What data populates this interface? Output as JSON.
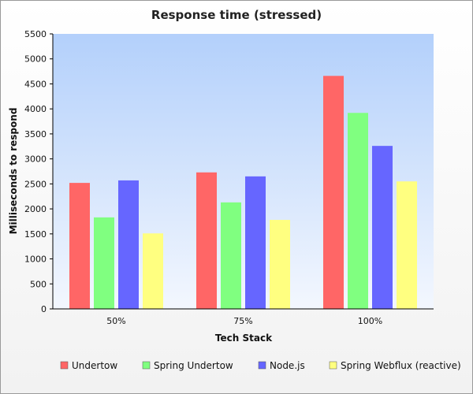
{
  "chart_data": {
    "type": "bar",
    "title": "Response time (stressed)",
    "xlabel": "Tech Stack",
    "ylabel": "Milliseconds to respond",
    "categories": [
      "50%",
      "75%",
      "100%"
    ],
    "ylim": [
      0,
      5500
    ],
    "yticks": [
      "0",
      "500",
      "1000",
      "1500",
      "2000",
      "2500",
      "3000",
      "3500",
      "4000",
      "4500",
      "5000",
      "5500"
    ],
    "grid": false,
    "legend_position": "bottom",
    "series": [
      {
        "name": "Undertow",
        "color": "#ff6666",
        "values": [
          2520,
          2730,
          4660
        ]
      },
      {
        "name": "Spring Undertow",
        "color": "#80ff80",
        "values": [
          1830,
          2130,
          3920
        ]
      },
      {
        "name": "Node.js",
        "color": "#6666ff",
        "values": [
          2570,
          2650,
          3260
        ]
      },
      {
        "name": "Spring Webflux (reactive)",
        "color": "#ffff80",
        "values": [
          1510,
          1780,
          2550
        ]
      }
    ]
  }
}
